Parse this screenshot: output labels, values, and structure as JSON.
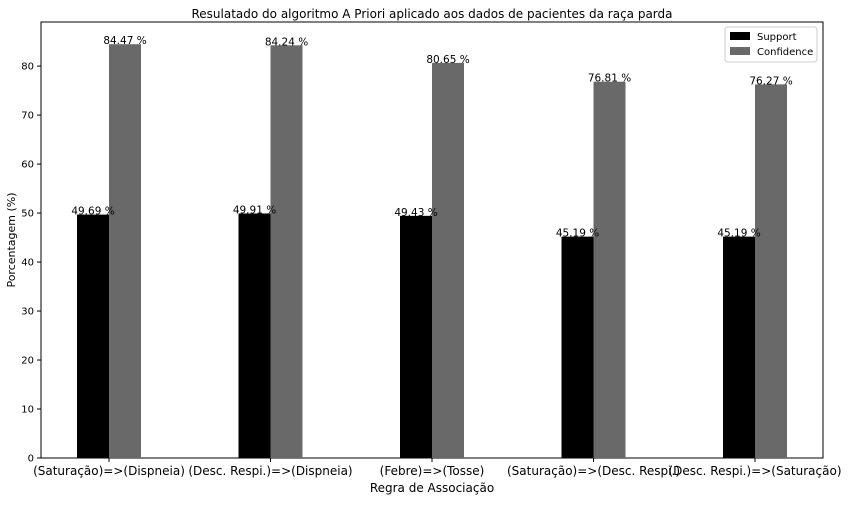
{
  "chart_data": {
    "type": "bar",
    "title": "Resulatado do algoritmo A Priori aplicado aos dados de pacientes da raça parda",
    "xlabel": "Regra de Associação",
    "ylabel": "Porcentagem (%)",
    "ylim": [
      0,
      89
    ],
    "yticks": [
      0,
      10,
      20,
      30,
      40,
      50,
      60,
      70,
      80
    ],
    "grid": false,
    "legend_position": "top-right",
    "categories": [
      "(Saturação)=>(Dispneia)",
      "(Desc. Respi.)=>(Dispneia)",
      "(Febre)=>(Tosse)",
      "(Saturação)=>(Desc. Respi.)",
      "(Desc. Respi.)=>(Saturação)"
    ],
    "series": [
      {
        "name": "Support",
        "color": "#000000",
        "values": [
          49.69,
          49.91,
          49.43,
          45.19,
          45.19
        ],
        "labels": [
          "49.69 %",
          "49.91 %",
          "49.43 %",
          "45.19 %",
          "45.19 %"
        ]
      },
      {
        "name": "Confidence",
        "color": "#696969",
        "values": [
          84.47,
          84.24,
          80.65,
          76.81,
          76.27
        ],
        "labels": [
          "84.47 %",
          "84.24 %",
          "80.65 %",
          "76.81 %",
          "76.27 %"
        ]
      }
    ]
  }
}
